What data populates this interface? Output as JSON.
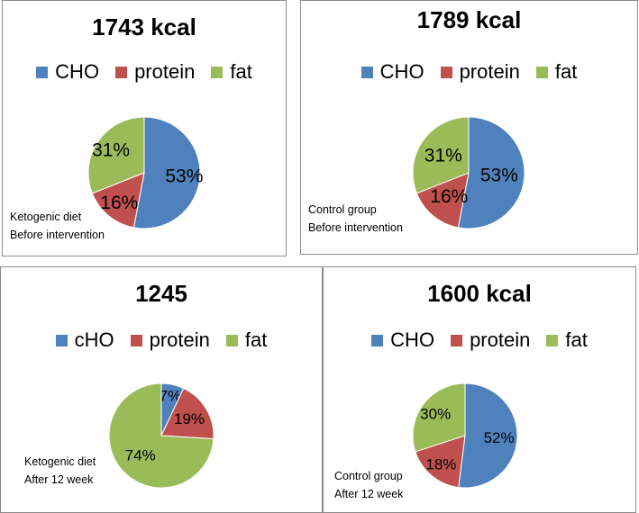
{
  "colors": {
    "cho": "#4F81BD",
    "protein": "#C0504D",
    "fat": "#9BBB59"
  },
  "chart_data": [
    {
      "type": "pie",
      "title": "1743 kcal",
      "legend": [
        "CHO",
        "protein",
        "fat"
      ],
      "values": [
        53,
        16,
        31
      ],
      "labels": [
        "53%",
        "16%",
        "31%"
      ],
      "note": [
        "Ketogenic diet",
        "Before intervention"
      ]
    },
    {
      "type": "pie",
      "title": "1789 kcal",
      "legend": [
        "CHO",
        "protein",
        "fat"
      ],
      "values": [
        53,
        16,
        31
      ],
      "labels": [
        "53%",
        "16%",
        "31%"
      ],
      "note": [
        "Control group",
        "Before intervention"
      ]
    },
    {
      "type": "pie",
      "title": "1245",
      "legend": [
        "cHO",
        "protein",
        "fat"
      ],
      "values": [
        7,
        19,
        74
      ],
      "labels": [
        "7%",
        "19%",
        "74%"
      ],
      "note": [
        "Ketogenic diet",
        "After 12 week"
      ]
    },
    {
      "type": "pie",
      "title": "1600 kcal",
      "legend": [
        "CHO",
        "protein",
        "fat"
      ],
      "values": [
        52,
        18,
        30
      ],
      "labels": [
        "52%",
        "18%",
        "30%"
      ],
      "note": [
        "Control group",
        "After 12 week"
      ]
    }
  ]
}
